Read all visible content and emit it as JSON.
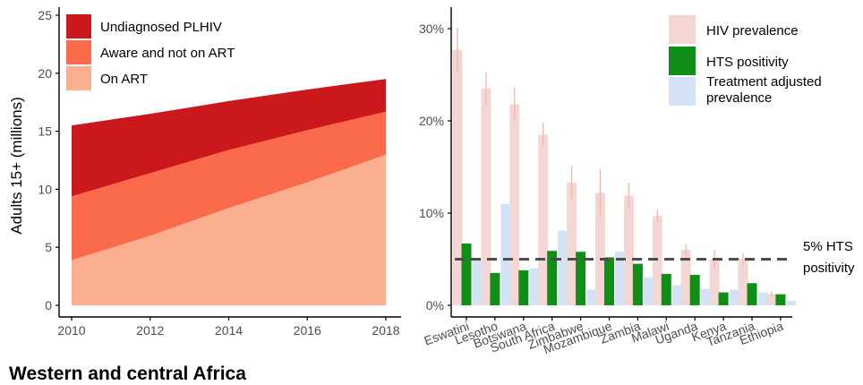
{
  "chart_data": [
    {
      "type": "area",
      "stacked": true,
      "ylabel": "Adults 15+ (millions)",
      "xlabel": "",
      "x": [
        2010,
        2012,
        2014,
        2016,
        2018
      ],
      "xticks": [
        "2010",
        "2012",
        "2014",
        "2016",
        "2018"
      ],
      "yticks": [
        "0",
        "5",
        "10",
        "15",
        "20",
        "25"
      ],
      "ylim": [
        0,
        26
      ],
      "grid": false,
      "legend_position": "top-left",
      "series": [
        {
          "name": "Undiagnosed PLHIV",
          "color": "#cb181d",
          "total": [
            15.5,
            16.5,
            17.6,
            18.6,
            19.5
          ]
        },
        {
          "name": "Aware and not on ART",
          "color": "#fb6a4a",
          "total": [
            9.4,
            11.4,
            13.4,
            15.1,
            16.7
          ]
        },
        {
          "name": "On ART",
          "color": "#fcae91",
          "total": [
            3.9,
            6.0,
            8.4,
            10.6,
            13.0
          ]
        }
      ]
    },
    {
      "type": "bar",
      "categories": [
        "Eswatini",
        "Lesotho",
        "Botswana",
        "South Africa",
        "Zimbabwe",
        "Mozambique",
        "Zambia",
        "Malawi",
        "Uganda",
        "Kenya",
        "Tanzania",
        "Ethiopia"
      ],
      "yticks": [
        "0%",
        "10%",
        "20%",
        "30%"
      ],
      "ylim": [
        0,
        31
      ],
      "legend_position": "top-right",
      "series": [
        {
          "name": "HIV prevalence",
          "color": "#f4d6d2",
          "values": [
            27.7,
            23.5,
            21.8,
            18.5,
            13.3,
            12.2,
            11.9,
            9.7,
            6.0,
            5.0,
            5.0,
            1.2
          ],
          "error": [
            2.4,
            1.8,
            1.8,
            1.3,
            1.8,
            2.6,
            1.4,
            0.7,
            0.6,
            1.0,
            0.6,
            0.3
          ]
        },
        {
          "name": "HTS positivity",
          "color": "#0f8f16",
          "values": [
            6.7,
            3.5,
            3.8,
            5.9,
            5.8,
            5.2,
            4.5,
            3.4,
            3.3,
            1.4,
            2.4,
            1.2
          ]
        },
        {
          "name": "Treatment adjusted prevalence",
          "name_lines": [
            "Treatment adjusted",
            "prevalence"
          ],
          "color": "#d4e2f6",
          "values": [
            5.0,
            11.0,
            4.0,
            8.1,
            1.7,
            5.8,
            3.0,
            2.2,
            1.8,
            1.7,
            1.4,
            0.5
          ]
        }
      ],
      "reference_line": {
        "value": 5,
        "style": "dashed",
        "label_lines": [
          "5% HTS",
          "positivity"
        ]
      }
    }
  ],
  "page": {
    "subtitle": "Western and central Africa"
  }
}
